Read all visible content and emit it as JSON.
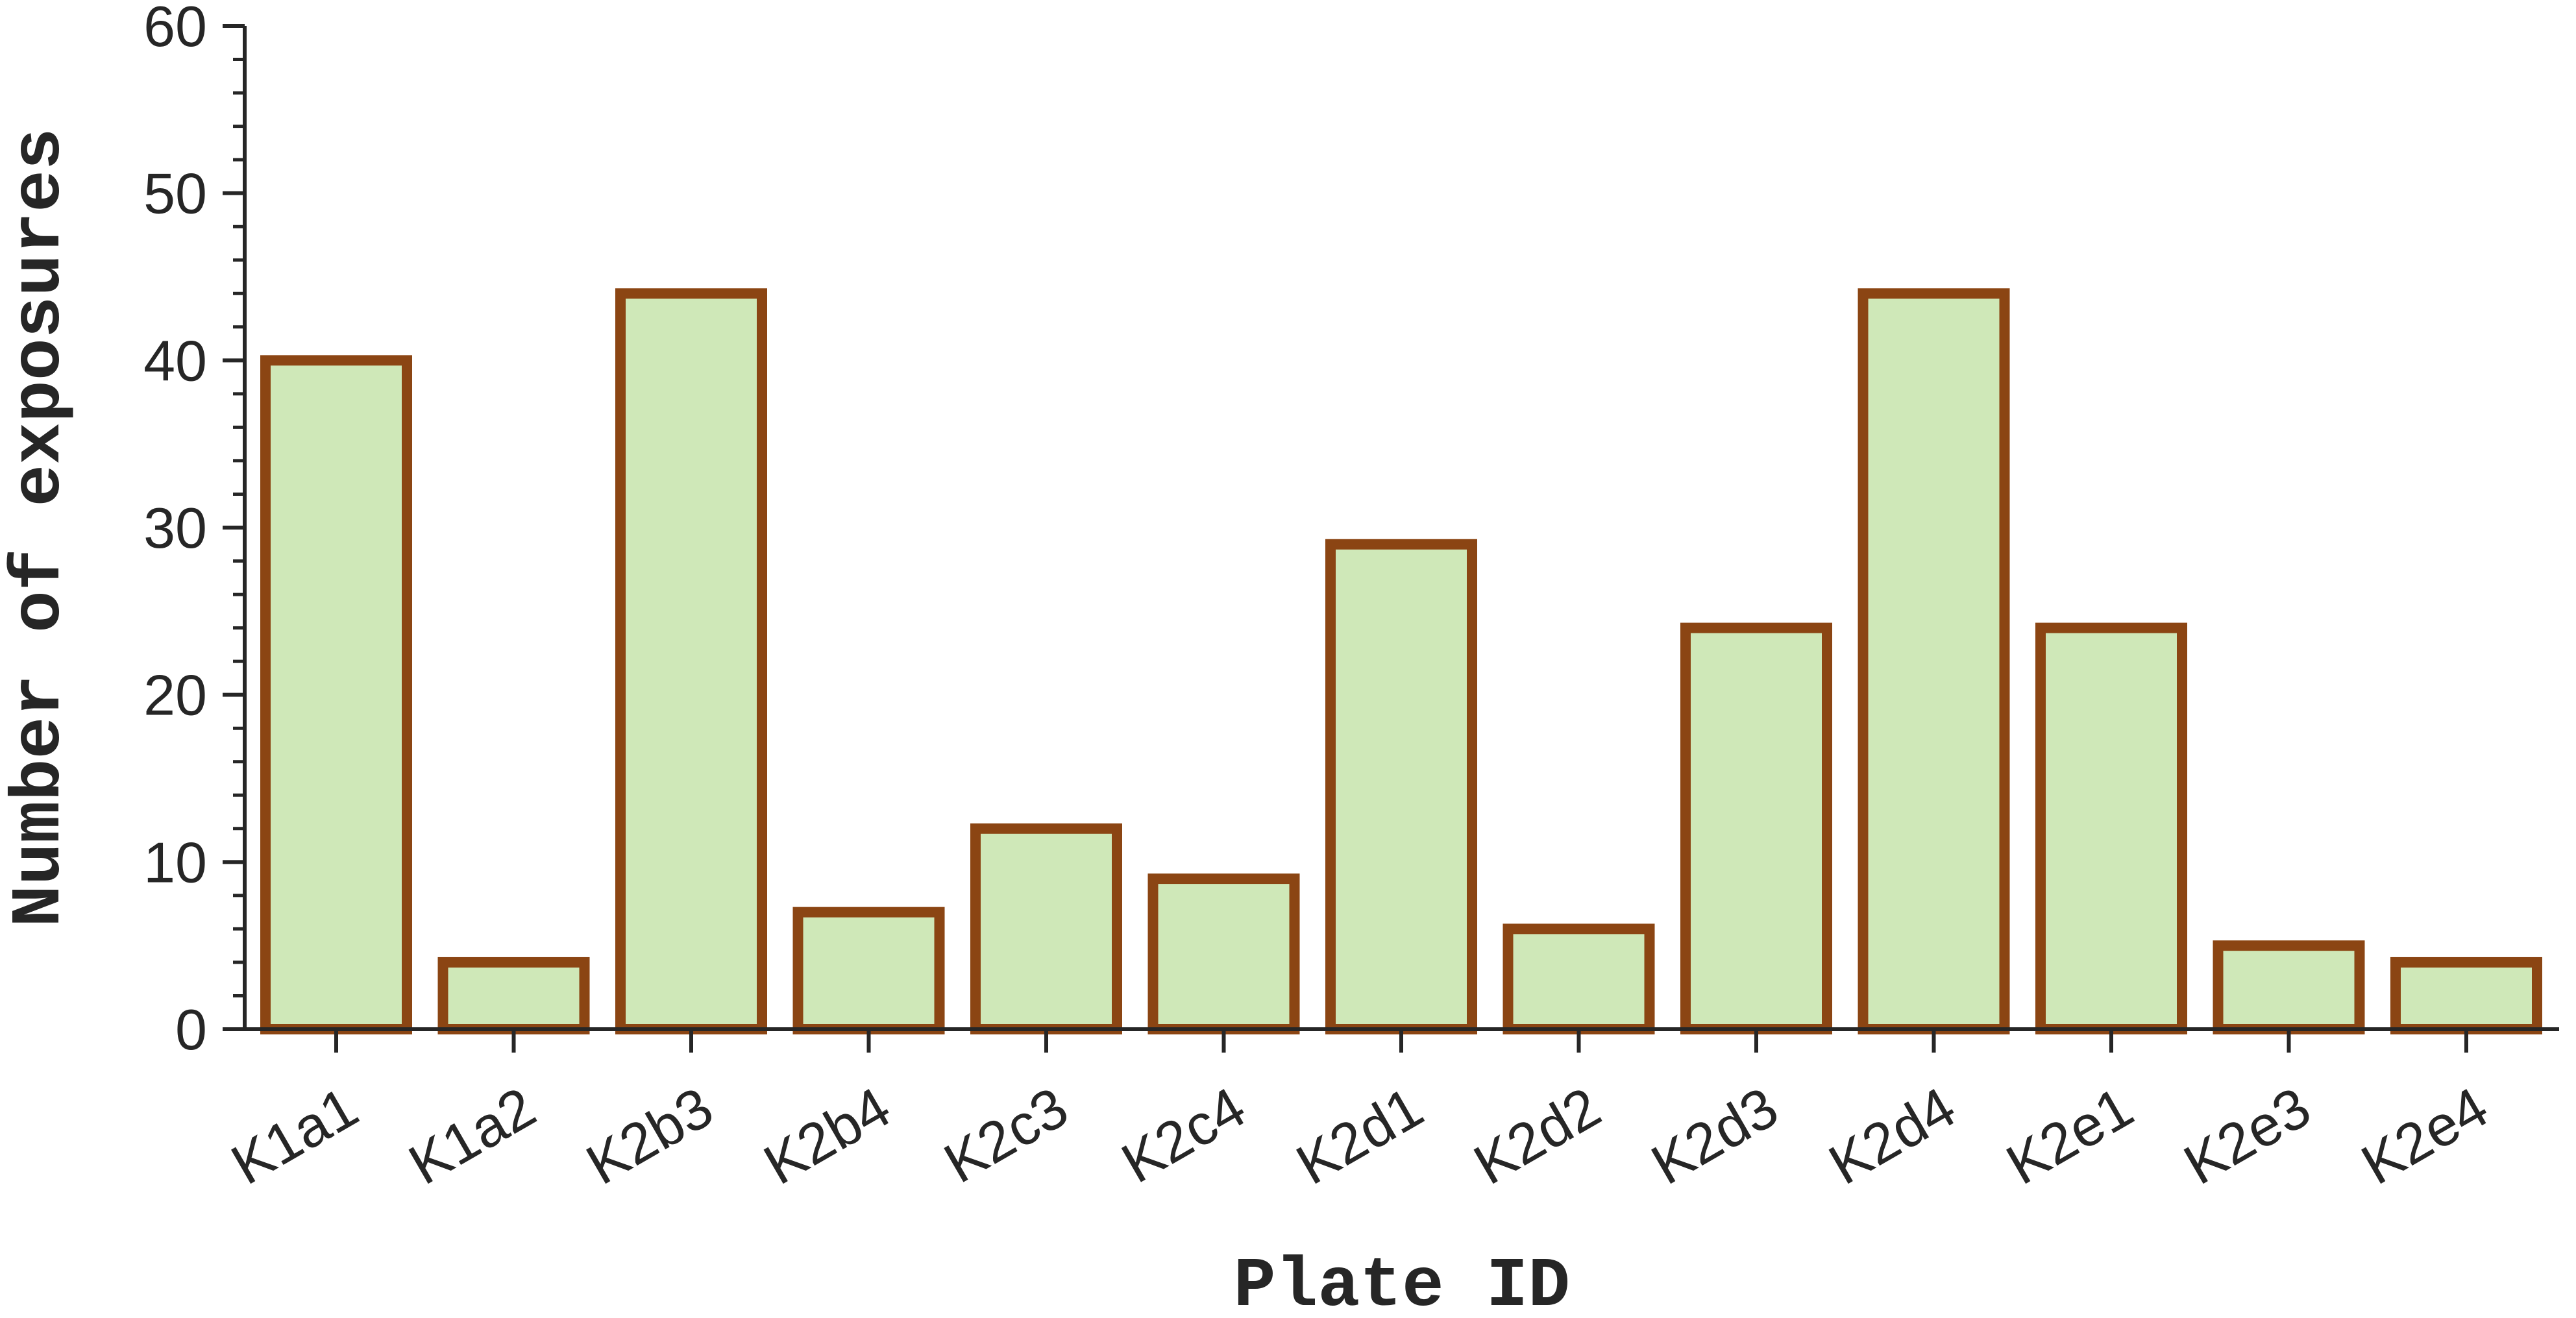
{
  "chart_data": {
    "type": "bar",
    "title": "",
    "xlabel": "Plate ID",
    "ylabel": "Number of exposures",
    "categories": [
      "K1a1",
      "K1a2",
      "K2b3",
      "K2b4",
      "K2c3",
      "K2c4",
      "K2d1",
      "K2d2",
      "K2d3",
      "K2d4",
      "K2e1",
      "K2e3",
      "K2e4"
    ],
    "values": [
      40,
      4,
      44,
      7,
      12,
      9,
      29,
      6,
      24,
      44,
      24,
      5,
      4
    ],
    "ylim": [
      0,
      60
    ],
    "yticks": [
      0,
      10,
      20,
      30,
      40,
      50,
      60
    ],
    "yticks_text": [
      "0",
      "10",
      "20",
      "30",
      "40",
      "50",
      "60"
    ],
    "grid": false,
    "legend": "none",
    "bar_fill_color": "#cfe8b8",
    "bar_edge_color": "#8b4513",
    "axis_color": "#262626"
  }
}
